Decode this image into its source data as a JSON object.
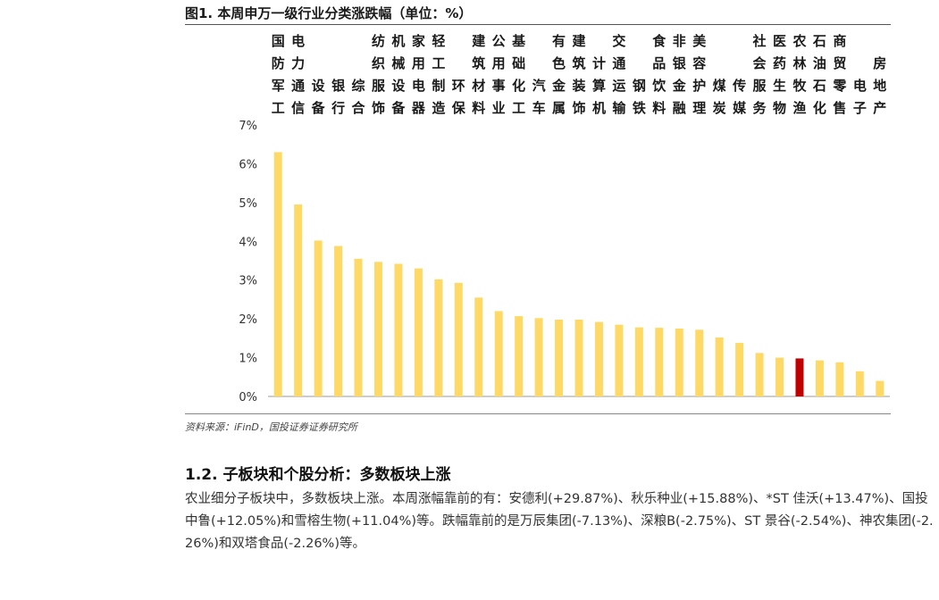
{
  "figure_title": "图1. 本周申万一级行业分类涨跌幅（单位：%）",
  "source": "资料来源：iFinD，国投证券证券研究所",
  "section_title": "1.2. 子板块和个股分析：多数板块上涨",
  "paragraph": "农业细分子板块中，多数板块上涨。本周涨幅靠前的有：安德利(+29.87%)、秋乐种业(+15.88%)、*ST 佳沃(+13.47%)、国投中鲁(+12.05%)和雪榕生物(+11.04%)等。跌幅靠前的是万辰集团(-7.13%)、深粮B(-2.75%)、ST 景谷(-2.54%)、神农集团(-2.26%)和双塔食品(-2.26%)等。",
  "chart_data": {
    "type": "bar",
    "categories": [
      "国防军工",
      "电力通信",
      "设备",
      "银行",
      "综合",
      "纺织服饰",
      "机械设备",
      "家用电器",
      "轻工制造",
      "环保",
      "建筑材料",
      "公用事业",
      "基础化工",
      "汽车",
      "有色金属",
      "建筑装饰",
      "计算机",
      "交通运输",
      "钢铁",
      "食品饮料",
      "非银金融",
      "美容护理",
      "煤炭",
      "传媒",
      "社会服务",
      "医药生物",
      "农林牧渔",
      "石油石化",
      "商贸零售",
      "电子",
      "房地产"
    ],
    "values": [
      6.3,
      4.95,
      4.02,
      3.88,
      3.55,
      3.47,
      3.42,
      3.3,
      3.02,
      2.93,
      2.55,
      2.2,
      2.07,
      2.02,
      1.98,
      1.98,
      1.92,
      1.85,
      1.78,
      1.77,
      1.75,
      1.72,
      1.52,
      1.38,
      1.12,
      1.0,
      0.98,
      0.93,
      0.88,
      0.65,
      0.4
    ],
    "highlight_index": 26,
    "colors": {
      "bar": "#FFD966",
      "highlight": "#C00000"
    },
    "ylim": [
      0,
      7
    ],
    "yticks": [
      "0%",
      "1%",
      "2%",
      "3%",
      "4%",
      "5%",
      "6%",
      "7%"
    ],
    "grid": false
  }
}
